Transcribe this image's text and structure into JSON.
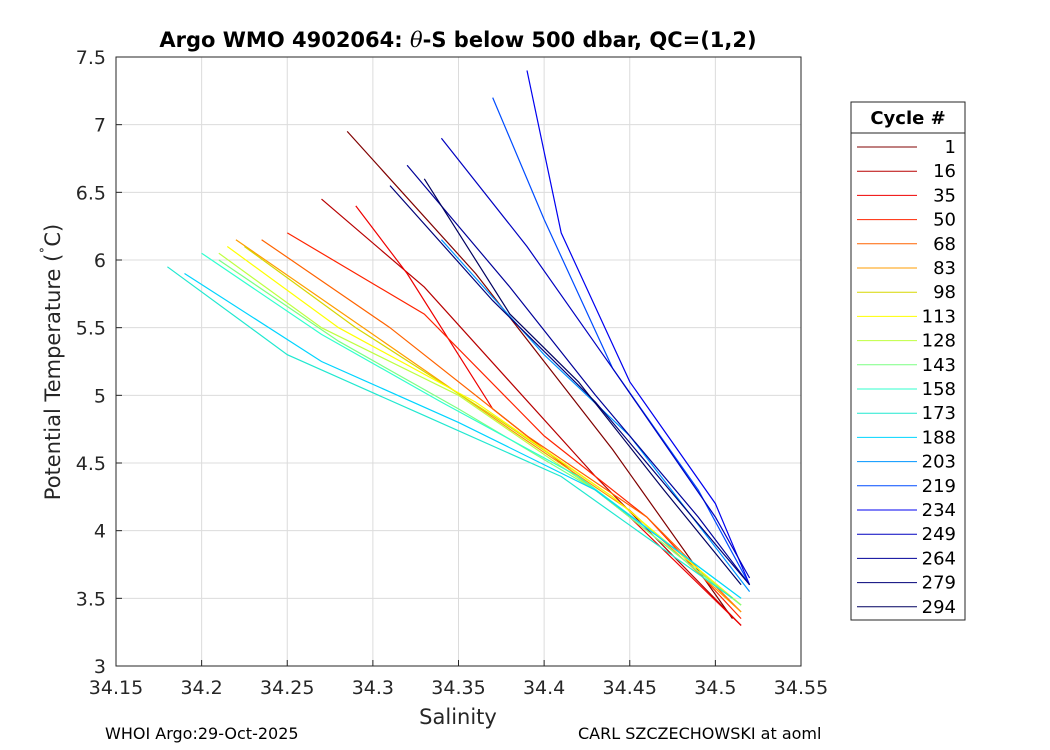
{
  "chart_data": {
    "type": "line",
    "title_prefix": "Argo WMO 4902064: ",
    "title_theta": "θ",
    "title_suffix": "-S below 500 dbar,  QC=(1,2)",
    "xlabel": "Salinity",
    "ylabel_prefix": "Potential Temperature (",
    "ylabel_deg": "˚",
    "ylabel_suffix": "C)",
    "xlim": [
      34.15,
      34.55
    ],
    "ylim": [
      3,
      7.5
    ],
    "xticks": [
      "34.15",
      "34.2",
      "34.25",
      "34.3",
      "34.35",
      "34.4",
      "34.45",
      "34.5",
      "34.55"
    ],
    "yticks": [
      "3",
      "3.5",
      "4",
      "4.5",
      "5",
      "5.5",
      "6",
      "6.5",
      "7",
      "7.5"
    ],
    "grid": true,
    "legend_title": "Cycle #",
    "legend_position": "right",
    "series": [
      {
        "name": "1",
        "color": "#800000",
        "x": [
          34.285,
          34.36,
          34.44,
          34.51
        ],
        "y": [
          6.95,
          5.9,
          4.6,
          3.35
        ]
      },
      {
        "name": "16",
        "color": "#b80000",
        "x": [
          34.27,
          34.33,
          34.38,
          34.43,
          34.515
        ],
        "y": [
          6.45,
          5.8,
          5.1,
          4.4,
          3.3
        ]
      },
      {
        "name": "35",
        "color": "#ef0000",
        "x": [
          34.29,
          34.32,
          34.37,
          34.45,
          34.515
        ],
        "y": [
          6.4,
          5.9,
          4.9,
          4.1,
          3.3
        ]
      },
      {
        "name": "50",
        "color": "#ff2400",
        "x": [
          34.25,
          34.33,
          34.4,
          34.46,
          34.515
        ],
        "y": [
          6.2,
          5.6,
          4.7,
          4.1,
          3.35
        ]
      },
      {
        "name": "68",
        "color": "#ff6400",
        "x": [
          34.235,
          34.31,
          34.39,
          34.46,
          34.515
        ],
        "y": [
          6.15,
          5.5,
          4.7,
          4.1,
          3.4
        ]
      },
      {
        "name": "83",
        "color": "#ff9c00",
        "x": [
          34.22,
          34.3,
          34.38,
          34.45,
          34.515
        ],
        "y": [
          6.15,
          5.45,
          4.75,
          4.15,
          3.4
        ]
      },
      {
        "name": "98",
        "color": "#d7d700",
        "x": [
          34.225,
          34.29,
          34.37,
          34.44,
          34.515
        ],
        "y": [
          6.1,
          5.5,
          4.85,
          4.25,
          3.45
        ]
      },
      {
        "name": "113",
        "color": "#ffff00",
        "x": [
          34.215,
          34.28,
          34.36,
          34.44,
          34.515
        ],
        "y": [
          6.1,
          5.5,
          4.95,
          4.25,
          3.45
        ]
      },
      {
        "name": "128",
        "color": "#bfff40",
        "x": [
          34.21,
          34.27,
          34.35,
          34.43,
          34.515
        ],
        "y": [
          6.05,
          5.5,
          5.0,
          4.3,
          3.45
        ]
      },
      {
        "name": "143",
        "color": "#7cff82",
        "x": [
          34.21,
          34.28,
          34.35,
          34.43,
          34.515
        ],
        "y": [
          6.0,
          5.4,
          4.9,
          4.3,
          3.45
        ]
      },
      {
        "name": "158",
        "color": "#30ffce",
        "x": [
          34.2,
          34.27,
          34.34,
          34.42,
          34.515
        ],
        "y": [
          6.05,
          5.45,
          4.95,
          4.4,
          3.5
        ]
      },
      {
        "name": "173",
        "color": "#20e8d0",
        "x": [
          34.18,
          34.25,
          34.33,
          34.41,
          34.51
        ],
        "y": [
          5.95,
          5.3,
          4.85,
          4.4,
          3.5
        ]
      },
      {
        "name": "188",
        "color": "#00d4ff",
        "x": [
          34.19,
          34.27,
          34.35,
          34.43,
          34.515
        ],
        "y": [
          5.9,
          5.25,
          4.8,
          4.3,
          3.5
        ]
      },
      {
        "name": "203",
        "color": "#0094ff",
        "x": [
          34.34,
          34.4,
          34.45,
          34.52
        ],
        "y": [
          6.15,
          5.3,
          4.7,
          3.55
        ]
      },
      {
        "name": "219",
        "color": "#004cff",
        "x": [
          34.37,
          34.4,
          34.44,
          34.49,
          34.52
        ],
        "y": [
          7.2,
          6.3,
          5.2,
          4.3,
          3.6
        ]
      },
      {
        "name": "234",
        "color": "#0000f0",
        "x": [
          34.39,
          34.41,
          34.45,
          34.5,
          34.52
        ],
        "y": [
          7.4,
          6.2,
          5.1,
          4.2,
          3.6
        ]
      },
      {
        "name": "249",
        "color": "#0000c0",
        "x": [
          34.34,
          34.39,
          34.44,
          34.5,
          34.52
        ],
        "y": [
          6.9,
          6.1,
          5.2,
          4.1,
          3.65
        ]
      },
      {
        "name": "264",
        "color": "#000098",
        "x": [
          34.32,
          34.38,
          34.43,
          34.49,
          34.52
        ],
        "y": [
          6.7,
          5.8,
          5.0,
          4.1,
          3.6
        ]
      },
      {
        "name": "279",
        "color": "#000078",
        "x": [
          34.31,
          34.37,
          34.43,
          34.48,
          34.52
        ],
        "y": [
          6.55,
          5.7,
          4.95,
          4.2,
          3.6
        ]
      },
      {
        "name": "294",
        "color": "#000060",
        "x": [
          34.33,
          34.38,
          34.42,
          34.47,
          34.515
        ],
        "y": [
          6.6,
          5.6,
          5.1,
          4.3,
          3.6
        ]
      }
    ]
  },
  "footer": {
    "left": "WHOI Argo:29-Oct-2025",
    "right": "CARL SZCZECHOWSKI at aoml"
  }
}
